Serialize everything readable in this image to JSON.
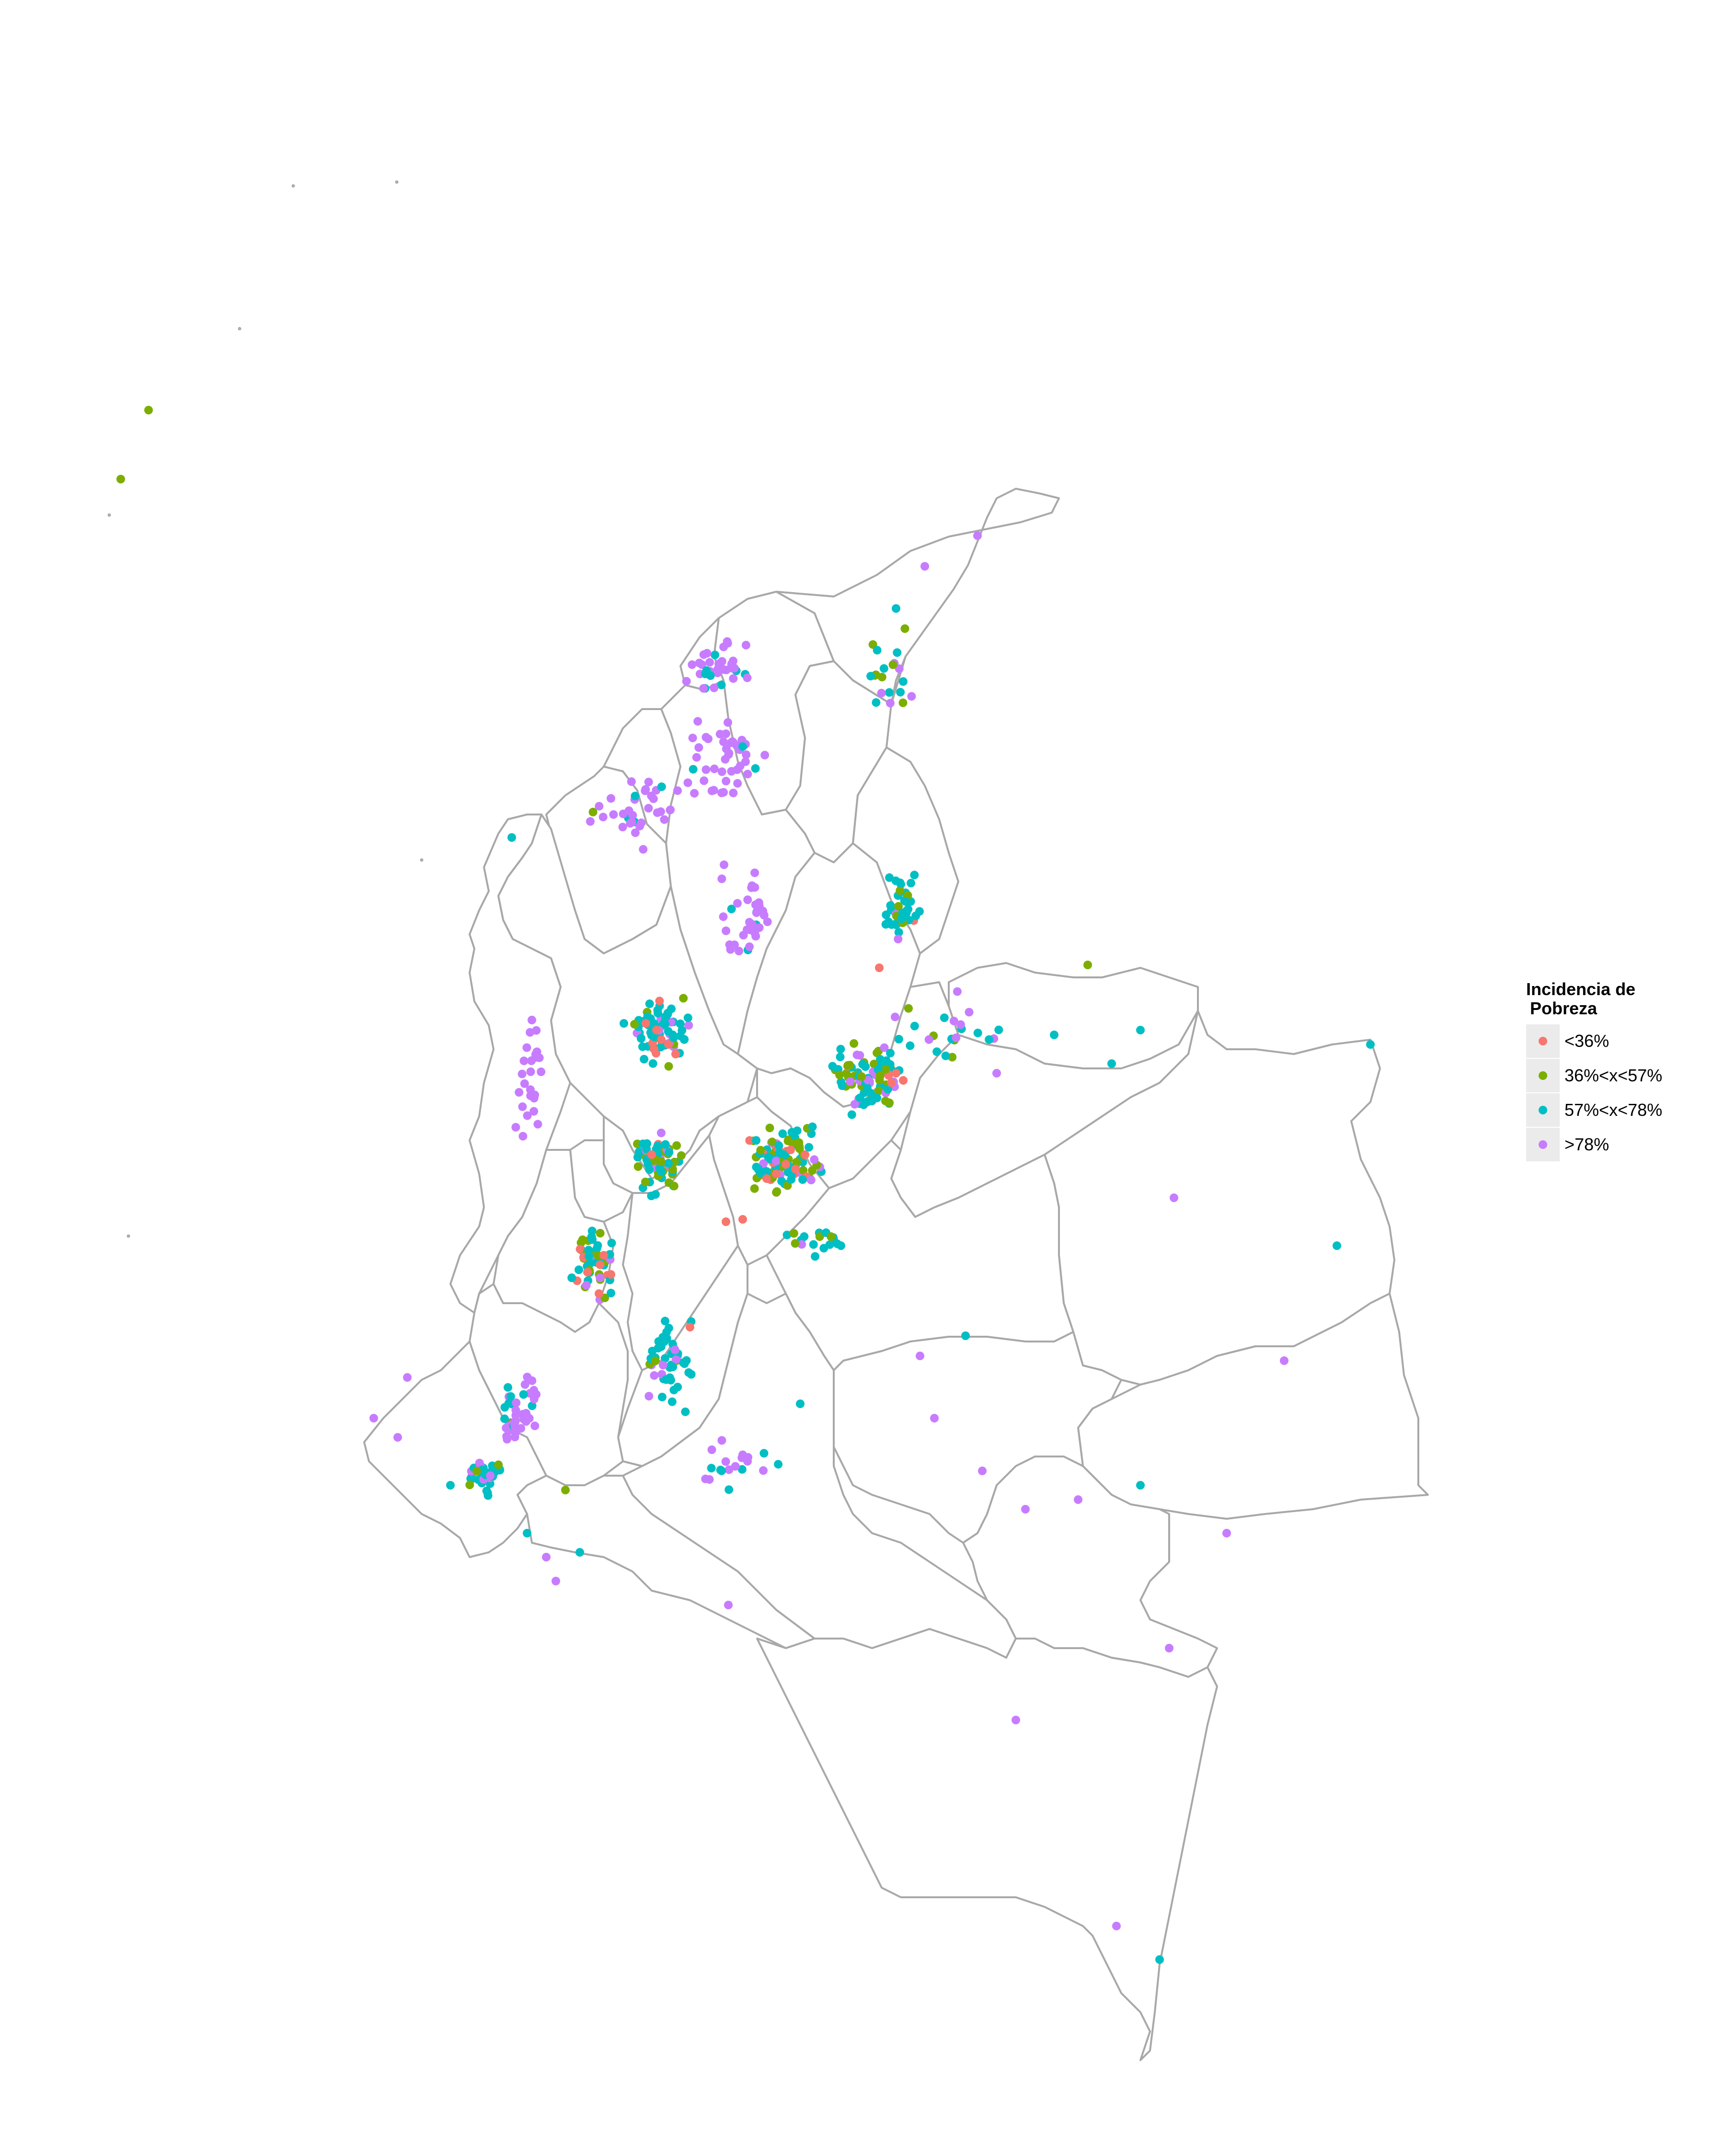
{
  "map": {
    "country": "Colombia",
    "boundary_color": "#a8a8a8"
  },
  "legend": {
    "title_line1": "Incidencia de",
    "title_line2": "Pobreza",
    "items": [
      {
        "label": "<36%",
        "color": "#f8766d"
      },
      {
        "label": "36%<x<57%",
        "color": "#7cae00"
      },
      {
        "label": "57%<x<78%",
        "color": "#00bfc4"
      },
      {
        "label": ">78%",
        "color": "#c77cff"
      }
    ]
  }
}
